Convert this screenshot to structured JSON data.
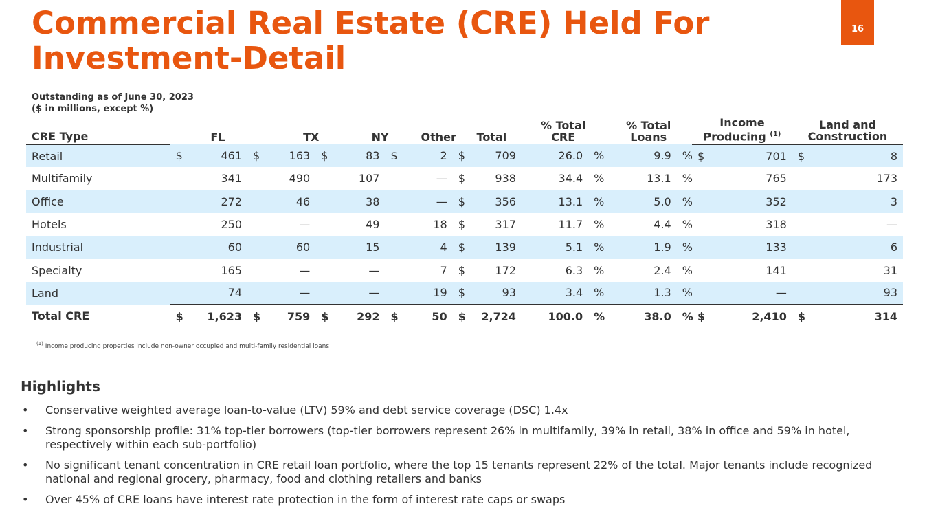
{
  "title": "Commercial Real Estate (CRE) Held For Investment-Detail",
  "page_number": "16",
  "subtitle": {
    "line1": "Outstanding as of June 30, 2023",
    "line2": "($ in millions, except %)"
  },
  "table": {
    "headers": {
      "type": "CRE Type",
      "fl": "FL",
      "tx": "TX",
      "ny": "NY",
      "other": "Other",
      "total": "Total",
      "pct_cre_1": "% Total",
      "pct_cre_2": "CRE",
      "pct_loans_1": "% Total",
      "pct_loans_2": "Loans",
      "income_1": "Income",
      "income_2": "Producing",
      "income_fn": "(1)",
      "land_1": "Land and",
      "land_2": "Construction"
    },
    "currency": "$",
    "percent": "%",
    "rows": [
      {
        "type": "Retail",
        "fl": "461",
        "tx": "163",
        "ny": "83",
        "other": "2",
        "total": "709",
        "pct_cre": "26.0",
        "pct_loans": "9.9",
        "income": "701",
        "land": "8"
      },
      {
        "type": "Multifamily",
        "fl": "341",
        "tx": "490",
        "ny": "107",
        "other": "—",
        "total": "938",
        "pct_cre": "34.4",
        "pct_loans": "13.1",
        "income": "765",
        "land": "173"
      },
      {
        "type": "Office",
        "fl": "272",
        "tx": "46",
        "ny": "38",
        "other": "—",
        "total": "356",
        "pct_cre": "13.1",
        "pct_loans": "5.0",
        "income": "352",
        "land": "3"
      },
      {
        "type": "Hotels",
        "fl": "250",
        "tx": "—",
        "ny": "49",
        "other": "18",
        "total": "317",
        "pct_cre": "11.7",
        "pct_loans": "4.4",
        "income": "318",
        "land": "—"
      },
      {
        "type": "Industrial",
        "fl": "60",
        "tx": "60",
        "ny": "15",
        "other": "4",
        "total": "139",
        "pct_cre": "5.1",
        "pct_loans": "1.9",
        "income": "133",
        "land": "6"
      },
      {
        "type": "Specialty",
        "fl": "165",
        "tx": "—",
        "ny": "—",
        "other": "7",
        "total": "172",
        "pct_cre": "6.3",
        "pct_loans": "2.4",
        "income": "141",
        "land": "31"
      },
      {
        "type": "Land",
        "fl": "74",
        "tx": "—",
        "ny": "—",
        "other": "19",
        "total": "93",
        "pct_cre": "3.4",
        "pct_loans": "1.3",
        "income": "—",
        "land": "93"
      }
    ],
    "total": {
      "type": "Total CRE",
      "fl": "1,623",
      "tx": "759",
      "ny": "292",
      "other": "50",
      "total": "2,724",
      "pct_cre": "100.0",
      "pct_loans": "38.0",
      "income": "2,410",
      "land": "314"
    }
  },
  "footnote": {
    "marker": "(1)",
    "text": "Income producing properties include non-owner occupied and multi-family residential loans"
  },
  "highlights": {
    "title": "Highlights",
    "bullets": [
      "Conservative weighted average loan-to-value (LTV) 59% and debt service coverage (DSC) 1.4x",
      "Strong sponsorship profile: 31% top-tier borrowers (top-tier borrowers represent 26% in multifamily, 39% in retail, 38% in office and 59% in hotel, respectively within each sub-portfolio)",
      "No significant tenant concentration in CRE retail loan portfolio, where the top 15 tenants represent 22% of the total. Major tenants include recognized national and regional grocery, pharmacy, food and clothing retailers and banks",
      "Over 45% of CRE loans have interest rate protection in the form of interest rate caps or swaps"
    ]
  },
  "colors": {
    "accent": "#e8560f",
    "row_shade": "#d9effc",
    "text": "#333333"
  }
}
